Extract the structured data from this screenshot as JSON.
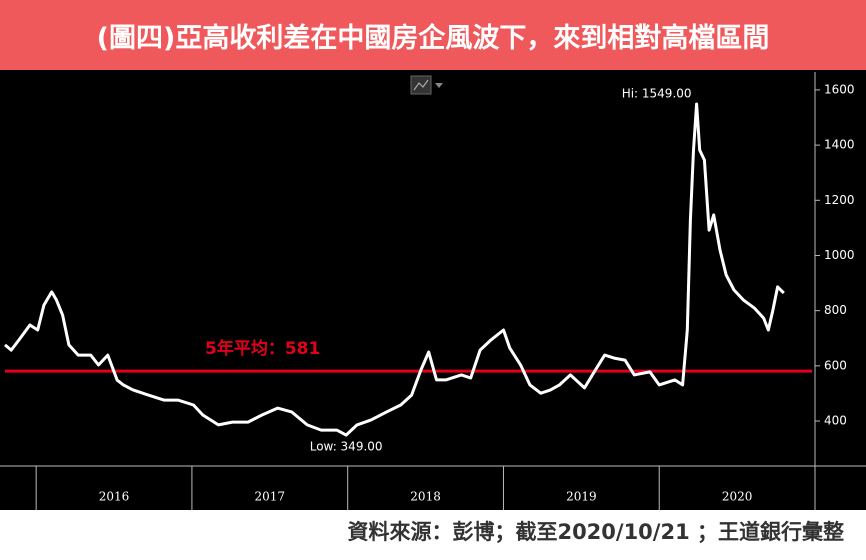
{
  "chart_data": {
    "type": "line",
    "title": "(圖四)亞高收利差在中國房企風波下，來到相對高檔區間",
    "source": "資料來源：彭博；截至2020/10/21 ；王道銀行彙整",
    "x": [
      2015.8,
      2015.84,
      2015.89,
      2015.96,
      2016.01,
      2016.05,
      2016.1,
      2016.13,
      2016.17,
      2016.21,
      2016.27,
      2016.35,
      2016.4,
      2016.46,
      2016.52,
      2016.56,
      2016.62,
      2016.72,
      2016.82,
      2016.91,
      2017.01,
      2017.07,
      2017.17,
      2017.26,
      2017.36,
      2017.45,
      2017.55,
      2017.64,
      2017.74,
      2017.83,
      2017.93,
      2017.99,
      2018.06,
      2018.15,
      2018.25,
      2018.34,
      2018.41,
      2018.47,
      2018.52,
      2018.57,
      2018.63,
      2018.73,
      2018.79,
      2018.85,
      2018.92,
      2019.0,
      2019.04,
      2019.11,
      2019.17,
      2019.24,
      2019.3,
      2019.36,
      2019.43,
      2019.52,
      2019.59,
      2019.65,
      2019.71,
      2019.78,
      2019.84,
      2019.94,
      2020.0,
      2020.1,
      2020.15,
      2020.18,
      2020.2,
      2020.22,
      2020.24,
      2020.26,
      2020.29,
      2020.32,
      2020.35,
      2020.39,
      2020.43,
      2020.48,
      2020.54,
      2020.61,
      2020.67,
      2020.7,
      2020.73,
      2020.76,
      2020.8
    ],
    "series": [
      {
        "color": "#ffffff",
        "values": [
          676,
          657,
          694,
          748,
          730,
          820,
          868,
          839,
          784,
          676,
          639,
          639,
          603,
          639,
          548,
          531,
          513,
          494,
          476,
          476,
          458,
          422,
          386,
          396,
          396,
          422,
          447,
          433,
          386,
          367,
          367,
          349,
          386,
          404,
          433,
          458,
          494,
          585,
          650,
          549,
          549,
          567,
          556,
          657,
          694,
          730,
          665,
          603,
          531,
          501,
          512,
          531,
          567,
          520,
          585,
          639,
          628,
          621,
          567,
          578,
          531,
          549,
          531,
          730,
          1129,
          1382,
          1549,
          1382,
          1346,
          1092,
          1147,
          1020,
          929,
          875,
          839,
          810,
          773,
          730,
          802,
          886,
          864
        ]
      }
    ],
    "xlim": [
      2015.8,
      2021.0
    ],
    "xdividers": [
      2016,
      2017,
      2018,
      2019,
      2020,
      2021
    ],
    "xticks": [
      {
        "value": 2016.5,
        "label": "2016"
      },
      {
        "value": 2017.5,
        "label": "2017"
      },
      {
        "value": 2018.5,
        "label": "2018"
      },
      {
        "value": 2019.5,
        "label": "2019"
      },
      {
        "value": 2020.5,
        "label": "2020"
      }
    ],
    "ylim": [
      237,
      1665
    ],
    "yticks": [
      400,
      600,
      800,
      1000,
      1200,
      1400,
      1600
    ],
    "reference_line": {
      "value": 581,
      "label": "5年平均：581",
      "color": "#e3001b"
    },
    "annotations": [
      {
        "text": "Hi: 1549.00",
        "x": 2020.24,
        "y": 1549
      },
      {
        "text": "Low: 349.00",
        "x": 2017.99,
        "y": 349
      }
    ]
  }
}
